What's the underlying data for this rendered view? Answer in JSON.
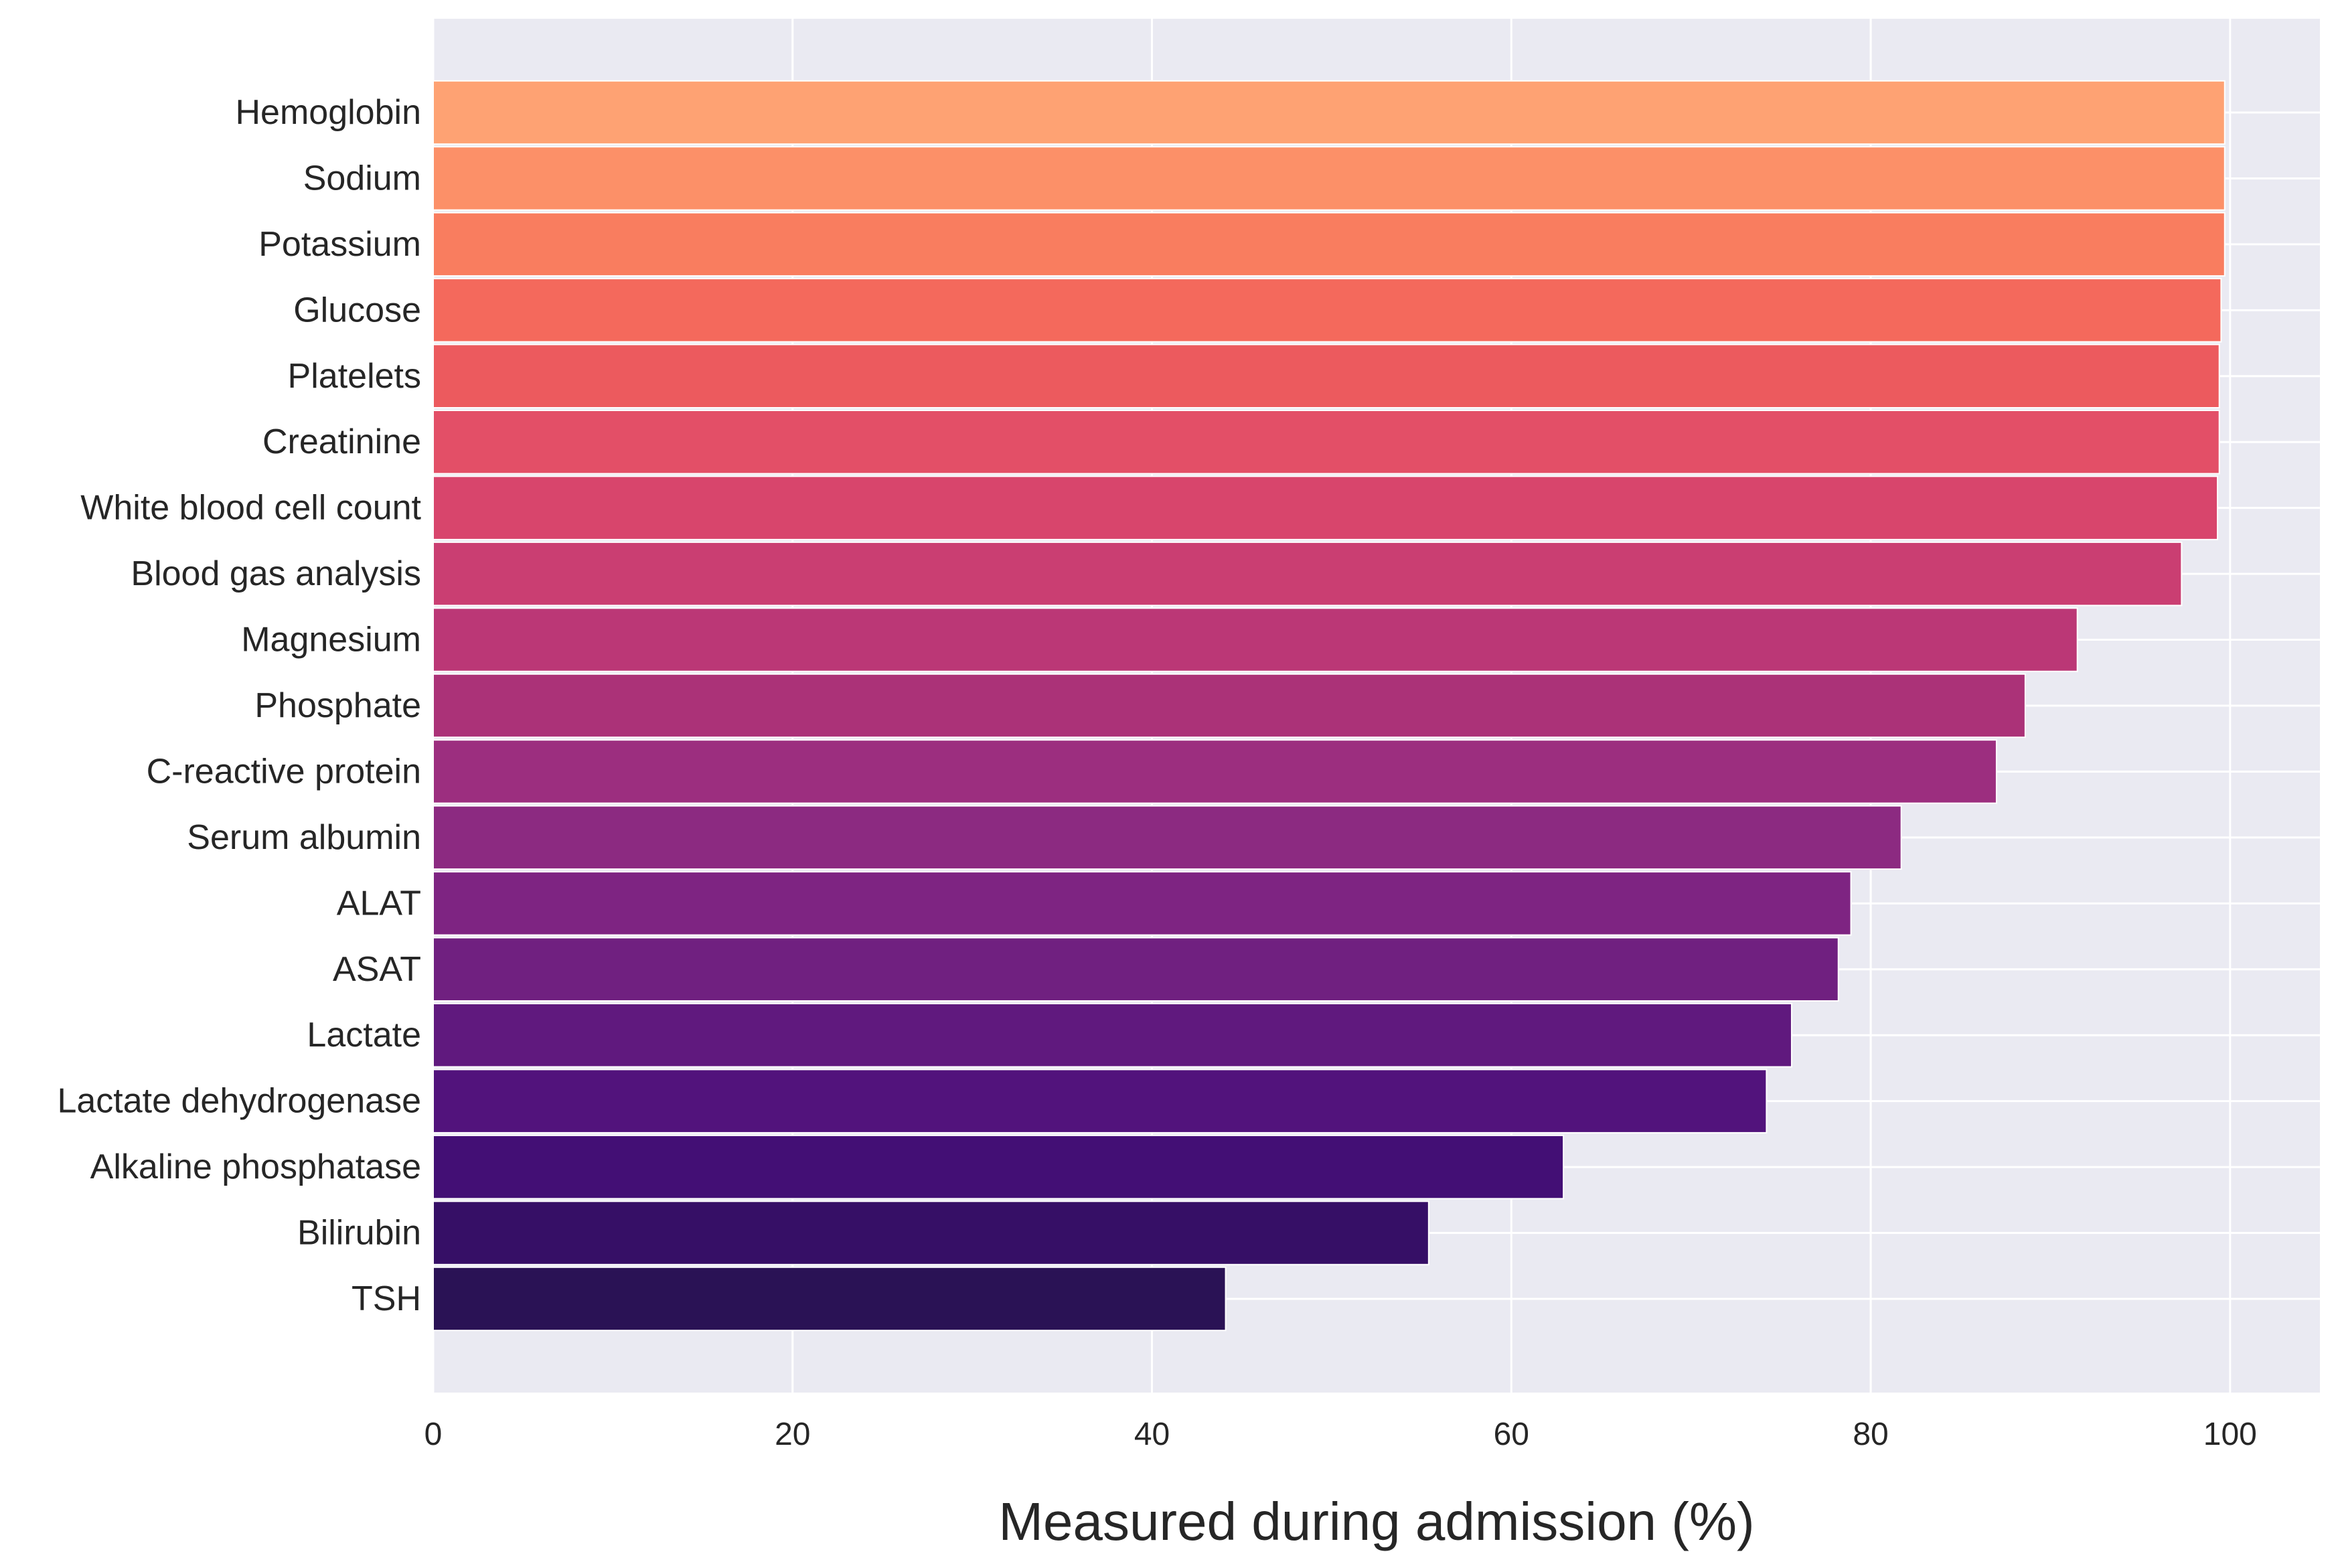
{
  "chart_data": {
    "type": "bar",
    "orientation": "horizontal",
    "title": "",
    "xlabel": "Measured during admission (%)",
    "ylabel": "",
    "xlim": [
      0,
      105
    ],
    "xticks": [
      0,
      20,
      40,
      60,
      80,
      100
    ],
    "grid": true,
    "legend": "none",
    "style": {
      "background": "#EAEAF2",
      "grid_color": "#FFFFFF",
      "colormap": "magma (light to dark, top to bottom)"
    },
    "categories": [
      "Hemoglobin",
      "Sodium",
      "Potassium",
      "Glucose",
      "Platelets",
      "Creatinine",
      "White blood cell count",
      "Blood gas analysis",
      "Magnesium",
      "Phosphate",
      "C-reactive protein",
      "Serum albumin",
      "ALAT",
      "ASAT",
      "Lactate",
      "Lactate dehydrogenase",
      "Alkaline phosphatase",
      "Bilirubin",
      "TSH"
    ],
    "values": [
      99.7,
      99.7,
      99.7,
      99.5,
      99.4,
      99.4,
      99.3,
      97.3,
      91.5,
      88.6,
      87.0,
      81.7,
      78.9,
      78.2,
      75.6,
      74.2,
      62.9,
      55.4,
      44.1
    ],
    "colors": [
      "#FEA273",
      "#FC9068",
      "#F97D5F",
      "#F4695C",
      "#EC5A5E",
      "#E34F67",
      "#D8456C",
      "#CA3E72",
      "#BB3776",
      "#AB3278",
      "#9C2E7F",
      "#8C2A81",
      "#7E2482",
      "#702080",
      "#60197E",
      "#52137C",
      "#430F75",
      "#360F66",
      "#2A1255"
    ]
  }
}
